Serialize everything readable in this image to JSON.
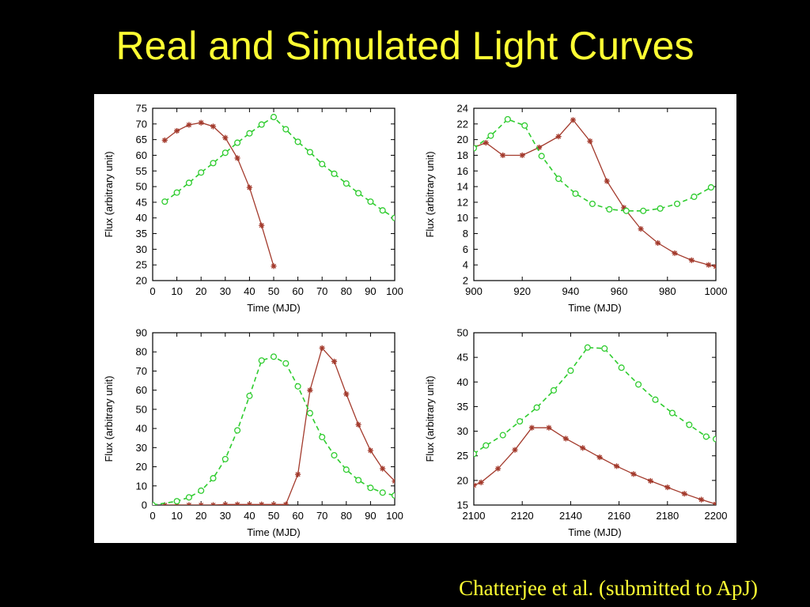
{
  "slide": {
    "title": "Real and Simulated Light Curves",
    "citation": "Chatterjee et al. (submitted to ApJ)"
  },
  "colors": {
    "real_series": "#a33a2c",
    "simulated_series": "#2fcc2f",
    "title_text": "#ffff33",
    "background": "#000000"
  },
  "chart_data": [
    {
      "type": "line",
      "xlabel": "Time (MJD)",
      "ylabel": "Flux (arbitrary unit)",
      "xlim": [
        0,
        100
      ],
      "ylim": [
        20,
        75
      ],
      "xticks": [
        0,
        10,
        20,
        30,
        40,
        50,
        60,
        70,
        80,
        90,
        100
      ],
      "yticks": [
        20,
        25,
        30,
        35,
        40,
        45,
        50,
        55,
        60,
        65,
        70,
        75
      ],
      "series": [
        {
          "marker": "star",
          "line": "solid",
          "x": [
            5,
            10,
            15,
            20,
            25,
            30,
            35,
            40,
            45,
            50
          ],
          "y": [
            64.8,
            67.8,
            69.7,
            70.4,
            69.2,
            65.6,
            59.1,
            49.7,
            37.6,
            24.6
          ]
        },
        {
          "marker": "circle",
          "line": "dashed",
          "x": [
            5,
            10,
            15,
            20,
            25,
            30,
            35,
            40,
            45,
            50,
            55,
            60,
            65,
            70,
            75,
            80,
            85,
            90,
            95,
            100
          ],
          "y": [
            45.2,
            48.1,
            51.2,
            54.5,
            57.5,
            60.8,
            64.0,
            67.0,
            69.8,
            72.2,
            68.3,
            64.3,
            61.0,
            57.2,
            54.1,
            51.0,
            47.9,
            45.2,
            42.4,
            40.0
          ]
        }
      ]
    },
    {
      "type": "line",
      "xlabel": "Time (MJD)",
      "ylabel": "Flux (arbitrary unit)",
      "xlim": [
        900,
        1000
      ],
      "ylim": [
        2,
        24
      ],
      "xticks": [
        900,
        920,
        940,
        960,
        980,
        1000
      ],
      "yticks": [
        2,
        4,
        6,
        8,
        10,
        12,
        14,
        16,
        18,
        20,
        22,
        24
      ],
      "series": [
        {
          "marker": "star",
          "line": "solid",
          "x": [
            900,
            905,
            912,
            920,
            927,
            935,
            941,
            948,
            955,
            962,
            969,
            976,
            983,
            990,
            997,
            1000
          ],
          "y": [
            19.0,
            19.6,
            18.0,
            18.0,
            19.0,
            20.4,
            22.5,
            19.8,
            14.7,
            11.3,
            8.6,
            6.8,
            5.5,
            4.6,
            4.0,
            3.8
          ]
        },
        {
          "marker": "circle",
          "line": "dashed",
          "x": [
            900,
            907,
            914,
            921,
            928,
            935,
            942,
            949,
            956,
            963,
            970,
            977,
            984,
            991,
            998
          ],
          "y": [
            18.9,
            20.5,
            22.6,
            21.8,
            17.9,
            15.0,
            13.1,
            11.8,
            11.1,
            10.9,
            10.9,
            11.2,
            11.8,
            12.7,
            13.9
          ]
        }
      ]
    },
    {
      "type": "line",
      "xlabel": "Time (MJD)",
      "ylabel": "Flux (arbitrary unit)",
      "xlim": [
        0,
        100
      ],
      "ylim": [
        0,
        90
      ],
      "xticks": [
        0,
        10,
        20,
        30,
        40,
        50,
        60,
        70,
        80,
        90,
        100
      ],
      "yticks": [
        0,
        10,
        20,
        30,
        40,
        50,
        60,
        70,
        80,
        90
      ],
      "series": [
        {
          "marker": "star",
          "line": "solid",
          "x": [
            5,
            10,
            15,
            20,
            25,
            30,
            35,
            40,
            45,
            50,
            55,
            60,
            65,
            70,
            75,
            80,
            85,
            90,
            95,
            100
          ],
          "y": [
            0,
            0,
            0,
            0,
            0,
            0.3,
            0.3,
            0.3,
            0.3,
            0.3,
            0.3,
            16,
            60,
            82,
            75,
            58,
            42,
            28.5,
            19,
            12.5
          ]
        },
        {
          "marker": "circle",
          "line": "dashed",
          "x": [
            0,
            10,
            15,
            20,
            25,
            30,
            35,
            40,
            45,
            50,
            55,
            60,
            65,
            70,
            75,
            80,
            85,
            90,
            95,
            100
          ],
          "y": [
            0,
            2,
            4,
            7.5,
            14,
            24,
            39,
            57,
            75.5,
            77.5,
            74,
            62,
            48,
            35.5,
            26,
            18.5,
            13,
            9,
            6.5,
            5
          ]
        }
      ]
    },
    {
      "type": "line",
      "xlabel": "Time (MJD)",
      "ylabel": "Flux (arbitrary unit)",
      "xlim": [
        2100,
        2200
      ],
      "ylim": [
        15,
        50
      ],
      "xticks": [
        2100,
        2120,
        2140,
        2160,
        2180,
        2200
      ],
      "yticks": [
        15,
        20,
        25,
        30,
        35,
        40,
        45,
        50
      ],
      "series": [
        {
          "marker": "star",
          "line": "solid",
          "x": [
            2100,
            2103,
            2110,
            2117,
            2124,
            2131,
            2138,
            2145,
            2152,
            2159,
            2166,
            2173,
            2180,
            2187,
            2194,
            2200
          ],
          "y": [
            19.0,
            19.6,
            22.4,
            26.2,
            30.7,
            30.7,
            28.5,
            26.6,
            24.7,
            22.9,
            21.3,
            19.9,
            18.6,
            17.3,
            16.1,
            15.2
          ]
        },
        {
          "marker": "circle",
          "line": "dashed",
          "x": [
            2100,
            2105,
            2112,
            2119,
            2126,
            2133,
            2140,
            2147,
            2154,
            2161,
            2168,
            2175,
            2182,
            2189,
            2196,
            2200
          ],
          "y": [
            25.4,
            27.1,
            29.2,
            32.0,
            34.8,
            38.3,
            42.3,
            47.0,
            46.8,
            42.9,
            39.5,
            36.4,
            33.7,
            31.3,
            28.9,
            28.4
          ]
        }
      ]
    }
  ]
}
